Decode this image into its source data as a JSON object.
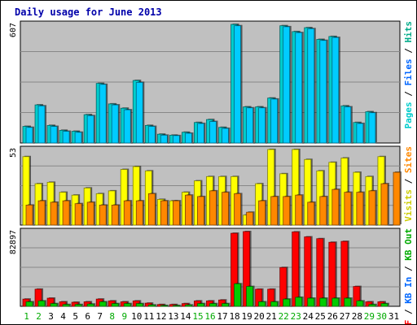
{
  "chart_data": {
    "type": "bar",
    "title": "Daily usage for June 2013",
    "categories": [
      "1",
      "2",
      "3",
      "4",
      "5",
      "6",
      "7",
      "8",
      "9",
      "10",
      "11",
      "12",
      "13",
      "14",
      "15",
      "16",
      "17",
      "18",
      "19",
      "20",
      "21",
      "22",
      "23",
      "24",
      "25",
      "26",
      "27",
      "28",
      "29",
      "30",
      "31"
    ],
    "weekend_days": [
      "1",
      "2",
      "8",
      "9",
      "15",
      "16",
      "22",
      "23",
      "29",
      "30"
    ],
    "colors": {
      "hits": "#00cccc",
      "files": "#00ccff",
      "pages": "#00ffff",
      "visits": "#ffff00",
      "sites": "#ff8800",
      "kbf": "#ff0000",
      "kbin": "#0066ff",
      "kbout": "#00aa00",
      "weekday_label": "#000000",
      "weekend_label": "#00aa00"
    },
    "panels": [
      {
        "id": "hits",
        "max_label": "607",
        "ymax": 607,
        "legend": [
          {
            "text": "Pages",
            "color": "#00cccc"
          },
          {
            "text": " / ",
            "color": "#000000"
          },
          {
            "text": "Files",
            "color": "#0066ff"
          },
          {
            "text": " / ",
            "color": "#000000"
          },
          {
            "text": "Hits",
            "color": "#00aa88"
          }
        ],
        "series": [
          {
            "name": "Hits",
            "color": "#00cccc",
            "values": [
              85,
              195,
              90,
              65,
              60,
              145,
              305,
              200,
              178,
              320,
              90,
              45,
              40,
              55,
              105,
              120,
              80,
              607,
              185,
              185,
              230,
              600,
              570,
              590,
              530,
              545,
              190,
              105,
              160,
              0,
              0
            ]
          },
          {
            "name": "Files",
            "color": "#00ccff",
            "values": [
              80,
              190,
              85,
              60,
              55,
              140,
              300,
              195,
              170,
              310,
              85,
              40,
              38,
              50,
              100,
              110,
              75,
              600,
              180,
              180,
              225,
              595,
              565,
              585,
              525,
              540,
              185,
              100,
              155,
              0,
              0
            ]
          }
        ]
      },
      {
        "id": "visits",
        "max_label": "53",
        "ymax": 53,
        "legend": [
          {
            "text": "Visits",
            "color": "#cccc00"
          },
          {
            "text": " / ",
            "color": "#000000"
          },
          {
            "text": "Sites",
            "color": "#ff8800"
          }
        ],
        "series": [
          {
            "name": "Visits",
            "color": "#ffff00",
            "values": [
              48,
              29,
              30,
              23,
              21,
              26,
              22,
              24,
              39,
              41,
              38,
              18,
              17,
              23,
              31,
              34,
              34,
              34,
              7,
              29,
              53,
              36,
              53,
              46,
              38,
              44,
              47,
              37,
              34,
              48,
              0
            ]
          },
          {
            "name": "Sites",
            "color": "#ff8800",
            "values": [
              14,
              17,
              16,
              17,
              15,
              16,
              14,
              14,
              17,
              17,
              22,
              17,
              17,
              21,
              20,
              24,
              23,
              22,
              9,
              17,
              20,
              20,
              21,
              16,
              20,
              25,
              23,
              23,
              24,
              29,
              37
            ]
          }
        ]
      },
      {
        "id": "kbytes",
        "max_label": "82897",
        "ymax": 82897,
        "legend": [
          {
            "text": "KB F",
            "color": "#ff0000"
          },
          {
            "text": " / ",
            "color": "#000000"
          },
          {
            "text": "KB In",
            "color": "#0066ff"
          },
          {
            "text": " / ",
            "color": "#000000"
          },
          {
            "text": "KB Out",
            "color": "#00aa00"
          }
        ],
        "series": [
          {
            "name": "KB F",
            "color": "#ff0000",
            "values": [
              8000,
              19000,
              9000,
              5000,
              4500,
              5000,
              8000,
              6000,
              5000,
              6000,
              3500,
              2000,
              2000,
              3000,
              6000,
              6000,
              7000,
              81000,
              82897,
              19000,
              19000,
              43000,
              82500,
              77000,
              75000,
              71000,
              72000,
              22000,
              5000,
              5000,
              0
            ]
          },
          {
            "name": "KB Out",
            "color": "#00cc00",
            "values": [
              5000,
              6000,
              3000,
              2000,
              2000,
              2500,
              5000,
              3000,
              3000,
              3000,
              1500,
              800,
              800,
              1500,
              3000,
              3000,
              3000,
              25000,
              22000,
              5000,
              5000,
              8000,
              10000,
              9000,
              9000,
              9000,
              9000,
              6000,
              2000,
              3000,
              0
            ]
          }
        ]
      }
    ]
  }
}
